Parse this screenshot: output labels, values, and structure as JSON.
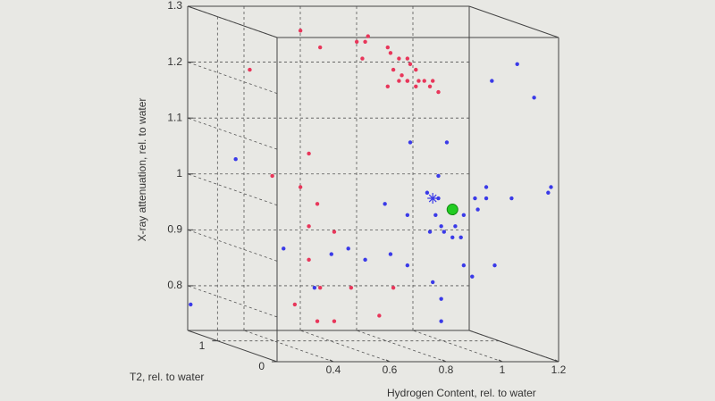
{
  "chart_data": {
    "type": "scatter3d",
    "xlabel": "Hydrogen Content, rel. to water",
    "ylabel": "T2, rel. to water",
    "zlabel": "X-ray attenuation, rel. to water",
    "xlim": [
      0.2,
      1.2
    ],
    "xticks": [
      0.4,
      0.6,
      0.8,
      1,
      1.2
    ],
    "ylim": [
      0,
      1.5
    ],
    "yticks": [
      0,
      1
    ],
    "zlim": [
      0.72,
      1.3
    ],
    "zticks": [
      0.8,
      0.9,
      1,
      1.1,
      1.2,
      1.3
    ],
    "grid": true,
    "series": [
      {
        "color": "#e8365a",
        "marker": "dot",
        "x": [
          0.41,
          0.23,
          0.48,
          0.61,
          0.64,
          0.65,
          0.72,
          0.73,
          0.76,
          0.79,
          0.8,
          0.82,
          0.74,
          0.77,
          0.83,
          0.87,
          0.9,
          0.72,
          0.79,
          0.82,
          0.85,
          0.88,
          0.76,
          0.79,
          0.63,
          0.44,
          0.31,
          0.41,
          0.47,
          0.44,
          0.53,
          0.44,
          0.48,
          0.59,
          0.39,
          0.47,
          0.53,
          0.69,
          0.74
        ],
        "y": [
          0.6,
          0.6,
          0.6,
          0.6,
          0.6,
          0.6,
          0.6,
          0.6,
          0.6,
          0.6,
          0.6,
          0.6,
          0.6,
          0.6,
          0.6,
          0.6,
          0.6,
          0.6,
          0.6,
          0.6,
          0.6,
          0.6,
          0.6,
          0.6,
          0.6,
          0.6,
          0.6,
          0.6,
          0.6,
          0.6,
          0.6,
          0.6,
          0.6,
          0.6,
          0.6,
          0.6,
          0.6,
          0.6,
          0.6
        ],
        "z": [
          1.29,
          1.22,
          1.26,
          1.27,
          1.27,
          1.28,
          1.26,
          1.25,
          1.24,
          1.24,
          1.23,
          1.22,
          1.22,
          1.21,
          1.2,
          1.19,
          1.18,
          1.19,
          1.2,
          1.19,
          1.2,
          1.2,
          1.2,
          1.2,
          1.24,
          1.07,
          1.03,
          1.01,
          0.98,
          0.94,
          0.93,
          0.88,
          0.83,
          0.83,
          0.8,
          0.77,
          0.77,
          0.78,
          0.83
        ]
      },
      {
        "color": "#3a3ae8",
        "marker": "dot",
        "x": [
          0.18,
          0.02,
          0.35,
          0.52,
          0.58,
          0.64,
          0.73,
          0.71,
          0.8,
          0.79,
          0.86,
          0.9,
          0.93,
          0.9,
          0.91,
          0.92,
          0.95,
          0.98,
          0.96,
          0.99,
          1.03,
          1.04,
          1.07,
          1.07,
          1.16,
          1.29,
          1.3,
          1.18,
          1.09,
          1.24,
          0.99,
          1.02,
          1.1,
          0.88,
          0.91,
          0.91,
          0.79,
          0.46,
          0.89,
          0.87
        ],
        "y": [
          0.6,
          0.6,
          0.6,
          0.6,
          0.6,
          0.6,
          0.6,
          0.6,
          0.6,
          0.6,
          0.6,
          0.6,
          0.6,
          0.6,
          0.6,
          0.6,
          0.6,
          0.6,
          0.6,
          0.6,
          0.6,
          0.6,
          0.6,
          0.6,
          0.6,
          0.6,
          0.6,
          0.6,
          0.6,
          0.6,
          0.6,
          0.6,
          0.6,
          0.6,
          0.6,
          0.6,
          0.6,
          0.6,
          0.6,
          0.6
        ],
        "z": [
          1.06,
          0.8,
          0.9,
          0.89,
          0.9,
          0.88,
          0.89,
          0.98,
          1.09,
          0.96,
          1.0,
          0.99,
          1.09,
          1.03,
          0.94,
          0.93,
          0.92,
          0.92,
          0.94,
          0.96,
          0.99,
          0.97,
          1.01,
          0.99,
          0.99,
          1.0,
          1.01,
          1.23,
          1.2,
          1.17,
          0.87,
          0.85,
          0.87,
          0.84,
          0.81,
          0.77,
          0.87,
          0.83,
          0.96,
          0.93
        ]
      },
      {
        "color": "#3a3ae8",
        "marker": "asterisk",
        "x": [
          0.88
        ],
        "y": [
          0.6
        ],
        "z": [
          0.99
        ]
      },
      {
        "color": "#22cc22",
        "marker": "big-dot",
        "x": [
          0.95
        ],
        "y": [
          0.6
        ],
        "z": [
          0.97
        ]
      }
    ]
  }
}
